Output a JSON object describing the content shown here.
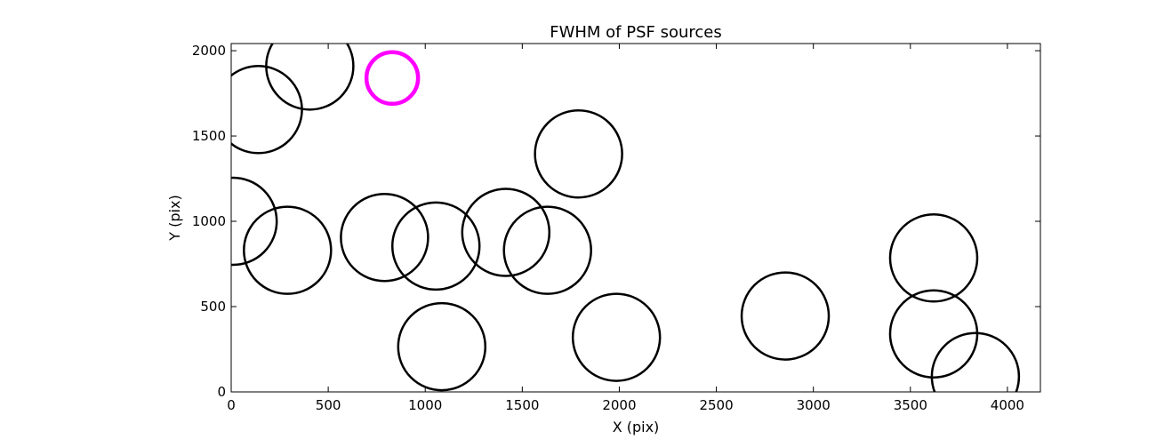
{
  "chart_data": {
    "type": "scatter",
    "title": "FWHM of PSF sources",
    "x_label": "X (pix)",
    "y_label": "Y (pix)",
    "series": [
      {
        "color": "#000000",
        "x": [
          10,
          140,
          405,
          290,
          790,
          1055,
          1415,
          1630,
          1790,
          1085,
          1985,
          2855,
          3620,
          3620,
          3835
        ],
        "values": [
          1000,
          1655,
          1910,
          830,
          905,
          855,
          935,
          830,
          1395,
          265,
          320,
          445,
          785,
          340,
          90
        ]
      },
      {
        "color": "#ff00ff",
        "x": [
          830
        ],
        "values": [
          1840
        ]
      }
    ],
    "xlim": [
      0,
      4170
    ],
    "ylim": [
      0,
      2042
    ],
    "xticks": [
      0,
      500,
      1000,
      1500,
      2000,
      2500,
      3000,
      3500,
      4000
    ],
    "yticks": [
      0,
      500,
      1000,
      1500,
      2000
    ],
    "grid": false
  }
}
